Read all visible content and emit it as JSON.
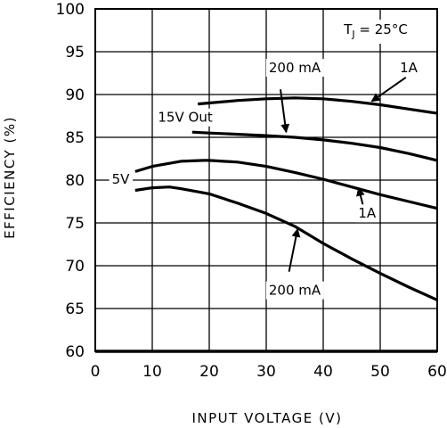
{
  "chart_data": {
    "type": "line",
    "title": "",
    "xlabel": "INPUT VOLTAGE (V)",
    "ylabel": "EFFICIENCY (%)",
    "xlim": [
      0,
      60
    ],
    "ylim": [
      60,
      100
    ],
    "xticks": [
      0,
      10,
      20,
      30,
      40,
      50,
      60
    ],
    "yticks": [
      60,
      65,
      70,
      75,
      80,
      85,
      90,
      95,
      100
    ],
    "grid": true,
    "line_color": "#000000",
    "series": [
      {
        "name": "",
        "x": [
          18,
          25,
          30,
          35,
          40,
          45,
          50,
          55,
          60
        ],
        "y": [
          88.9,
          89.3,
          89.5,
          89.6,
          89.5,
          89.2,
          88.8,
          88.3,
          87.8
        ]
      },
      {
        "name": "",
        "x": [
          17,
          20,
          25,
          30,
          35,
          40,
          45,
          50,
          55,
          60
        ],
        "y": [
          85.6,
          85.5,
          85.35,
          85.2,
          85.0,
          84.7,
          84.3,
          83.8,
          83.1,
          82.3
        ]
      },
      {
        "name": "",
        "x": [
          7,
          10,
          15,
          19,
          20,
          25,
          30,
          35,
          40,
          45,
          50,
          55,
          60
        ],
        "y": [
          81.0,
          81.6,
          82.2,
          82.3,
          82.3,
          82.1,
          81.6,
          80.9,
          80.1,
          79.2,
          78.3,
          77.5,
          76.7
        ]
      },
      {
        "name": "",
        "x": [
          7,
          10,
          13,
          15,
          20,
          25,
          30,
          35,
          40,
          45,
          50,
          55,
          60
        ],
        "y": [
          78.8,
          79.1,
          79.2,
          79.0,
          78.4,
          77.3,
          76.1,
          74.6,
          72.6,
          70.8,
          69.1,
          67.5,
          66.0
        ]
      }
    ],
    "annotations": [
      {
        "id": "tj",
        "text": "T_J = 25°C"
      },
      {
        "id": "ann-200ma-top",
        "text": "200 mA",
        "x": 35,
        "y": 92.6,
        "anchor": "middle"
      },
      {
        "id": "ann-1a-top",
        "text": "1A",
        "x": 55,
        "y": 92.6,
        "anchor": "middle"
      },
      {
        "id": "ann-15v-out",
        "text": "15V Out",
        "x": 11,
        "y": 86.8,
        "anchor": "start"
      },
      {
        "id": "ann-5v",
        "text": "5V",
        "x": 6,
        "y": 79.6,
        "anchor": "end"
      },
      {
        "id": "ann-1a-bottom",
        "text": "1A",
        "x": 47.7,
        "y": 75.6,
        "anchor": "middle"
      },
      {
        "id": "ann-200ma-bottom",
        "text": "200 mA",
        "x": 35,
        "y": 66.6,
        "anchor": "middle"
      }
    ],
    "arrows": [
      {
        "from": [
          32.5,
          90.6
        ],
        "to": [
          33.5,
          85.6
        ]
      },
      {
        "from": [
          54.5,
          92.0
        ],
        "to": [
          48.5,
          89.2
        ]
      },
      {
        "from": [
          47.0,
          77.0
        ],
        "to": [
          46.2,
          79.1
        ]
      },
      {
        "from": [
          34.0,
          69.3
        ],
        "to": [
          35.5,
          74.3
        ]
      }
    ]
  }
}
